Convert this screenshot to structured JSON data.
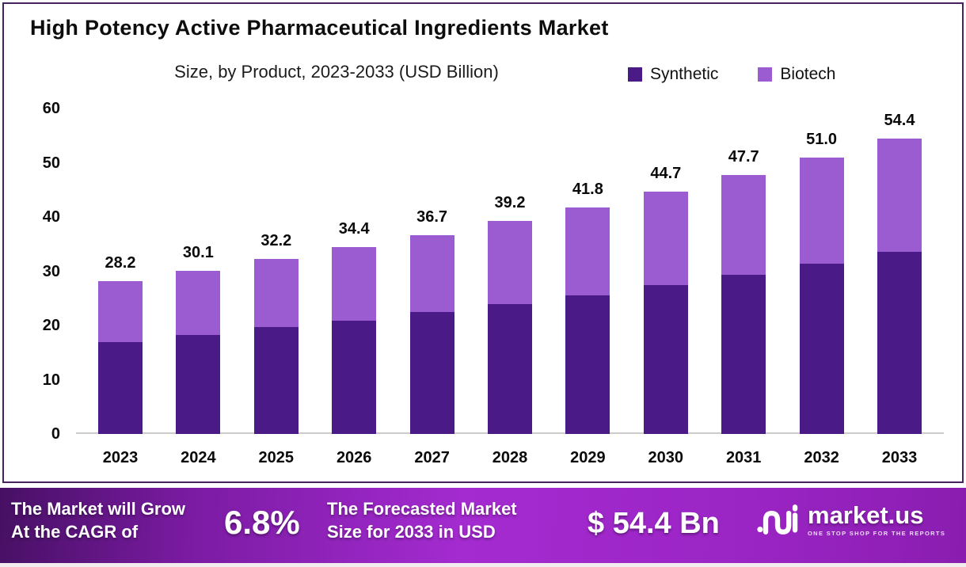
{
  "chart_data": {
    "type": "bar",
    "stacked": true,
    "title": "High Potency Active Pharmaceutical Ingredients Market",
    "subtitle": "Size, by Product, 2023-2033 (USD Billion)",
    "unit": "USD Billion",
    "categories": [
      "2023",
      "2024",
      "2025",
      "2026",
      "2027",
      "2028",
      "2029",
      "2030",
      "2031",
      "2032",
      "2033"
    ],
    "series": [
      {
        "name": "Synthetic",
        "color": "#4a1a86",
        "values": [
          17.0,
          18.2,
          19.7,
          20.9,
          22.5,
          23.9,
          25.6,
          27.4,
          29.3,
          31.4,
          33.6
        ]
      },
      {
        "name": "Biotech",
        "color": "#9a5cd0",
        "values": [
          11.2,
          11.9,
          12.5,
          13.5,
          14.2,
          15.3,
          16.2,
          17.3,
          18.4,
          19.6,
          20.8
        ]
      }
    ],
    "totals": [
      28.2,
      30.1,
      32.2,
      34.4,
      36.7,
      39.2,
      41.8,
      44.7,
      47.7,
      51.0,
      54.4
    ],
    "total_labels": [
      "28.2",
      "30.1",
      "32.2",
      "34.4",
      "36.7",
      "39.2",
      "41.8",
      "44.7",
      "47.7",
      "51.0",
      "54.4"
    ],
    "ylim": [
      0,
      60
    ],
    "yticks": [
      0,
      10,
      20,
      30,
      40,
      50,
      60
    ],
    "grid": false,
    "legend_position": "top-right"
  },
  "footer": {
    "left_line1": "The Market will Grow",
    "left_line2": "At the CAGR of",
    "cagr": "6.8%",
    "mid_line1": "The Forecasted Market",
    "mid_line2": "Size for 2033 in USD",
    "forecast_value": "$ 54.4 Bn",
    "logo_text": "market.us",
    "logo_tagline": "ONE STOP SHOP FOR THE REPORTS"
  },
  "colors": {
    "synthetic": "#4a1a86",
    "biotech": "#9a5cd0",
    "card_border": "#46235f",
    "baseline": "#cccccc",
    "label_text": "#0b0b0b",
    "banner_text": "#ffffff",
    "banner_gradient": [
      "#471064",
      "#7b1ba3",
      "#a42bd0",
      "#9c25c6",
      "#8a1db0"
    ]
  }
}
